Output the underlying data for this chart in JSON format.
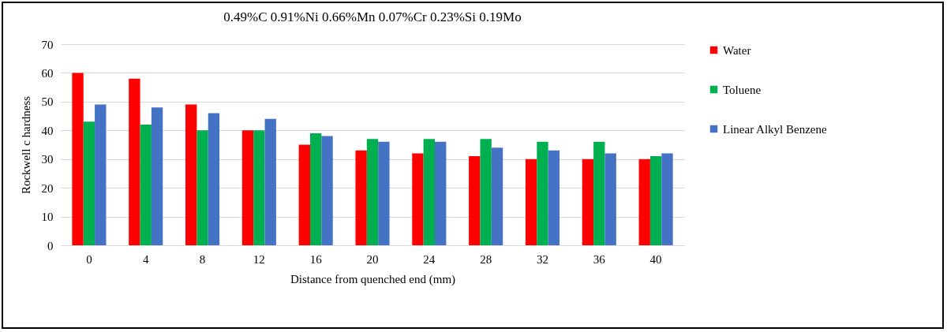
{
  "chart_data": {
    "type": "bar",
    "title": "0.49%C 0.91%Ni 0.66%Mn 0.07%Cr 0.23%Si 0.19Mo",
    "xlabel": "Distance from quenched end (mm)",
    "ylabel": "Rockwell c hardness",
    "categories": [
      "0",
      "4",
      "8",
      "12",
      "16",
      "20",
      "24",
      "28",
      "32",
      "36",
      "40"
    ],
    "series": [
      {
        "name": "Water",
        "color": "#ff0000",
        "values": [
          60,
          58,
          49,
          40,
          35,
          33,
          32,
          31,
          30,
          30,
          30
        ]
      },
      {
        "name": "Toluene",
        "color": "#00b050",
        "values": [
          43,
          42,
          40,
          40,
          39,
          37,
          37,
          37,
          36,
          36,
          31
        ]
      },
      {
        "name": "Linear Alkyl Benzene",
        "color": "#4472c4",
        "values": [
          49,
          48,
          46,
          44,
          38,
          36,
          36,
          34,
          33,
          32,
          32
        ]
      }
    ],
    "ylim": [
      0,
      70
    ],
    "yticks": [
      0,
      10,
      20,
      30,
      40,
      50,
      60,
      70
    ],
    "grid": "y",
    "legend": "right"
  }
}
